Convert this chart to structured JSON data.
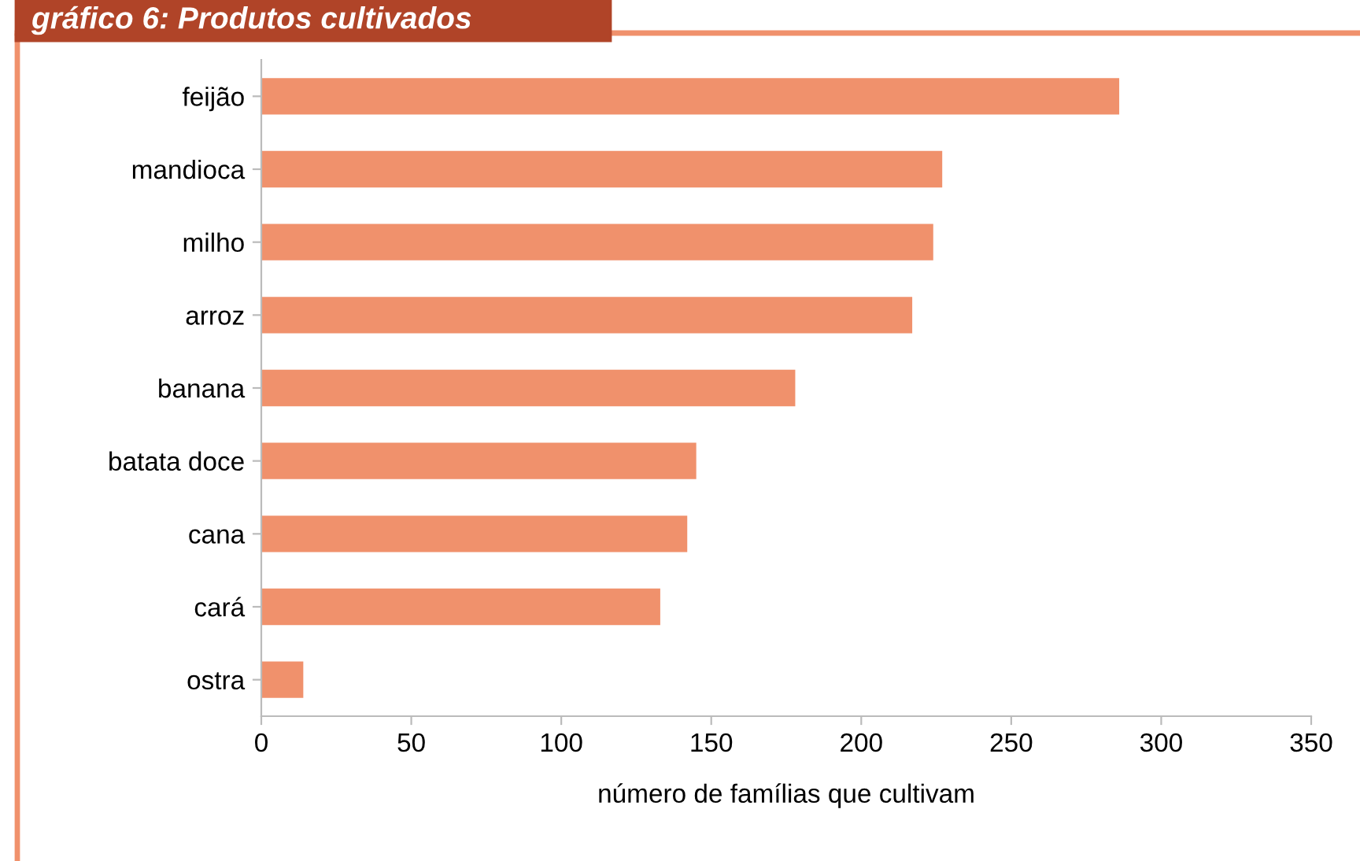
{
  "chart_data": {
    "type": "bar",
    "orientation": "horizontal",
    "title": "gráfico 6: Produtos cultivados",
    "categories": [
      "feijão",
      "mandioca",
      "milho",
      "arroz",
      "banana",
      "batata doce",
      "cana",
      "cará",
      "ostra"
    ],
    "values": [
      286,
      227,
      224,
      217,
      178,
      145,
      142,
      133,
      14
    ],
    "color": "#f0916c",
    "xlabel": "número de famílias que cultivam",
    "xlim": [
      0,
      350
    ],
    "xticks": [
      0,
      50,
      100,
      150,
      200,
      250,
      300,
      350
    ],
    "grid": false
  }
}
